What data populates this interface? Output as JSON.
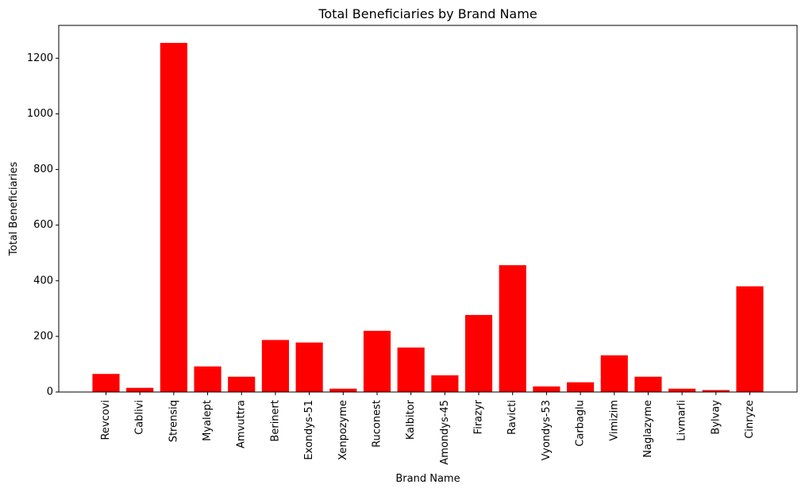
{
  "chart_data": {
    "type": "bar",
    "title": "Total Beneficiaries by Brand Name",
    "xlabel": "Brand Name",
    "ylabel": "Total Beneficiaries",
    "categories": [
      "Revcovi",
      "Cablivi",
      "Strensiq",
      "Myalept",
      "Amvuttra",
      "Berinert",
      "Exondys-51",
      "Xenpozyme",
      "Ruconest",
      "Kalbitor",
      "Amondys-45",
      "Firazyr",
      "Ravicti",
      "Vyondys-53",
      "Carbaglu",
      "Vimizim",
      "Naglazyme",
      "Livmarli",
      "Bylvay",
      "Cinryze"
    ],
    "values": [
      65,
      15,
      1255,
      92,
      55,
      187,
      178,
      12,
      220,
      160,
      60,
      277,
      456,
      20,
      35,
      132,
      55,
      12,
      7,
      380
    ],
    "yticks": [
      0,
      200,
      400,
      600,
      800,
      1000,
      1200
    ],
    "ylim": [
      0,
      1318
    ],
    "bar_color": "#ff0000",
    "grid": false,
    "legend": "none"
  }
}
